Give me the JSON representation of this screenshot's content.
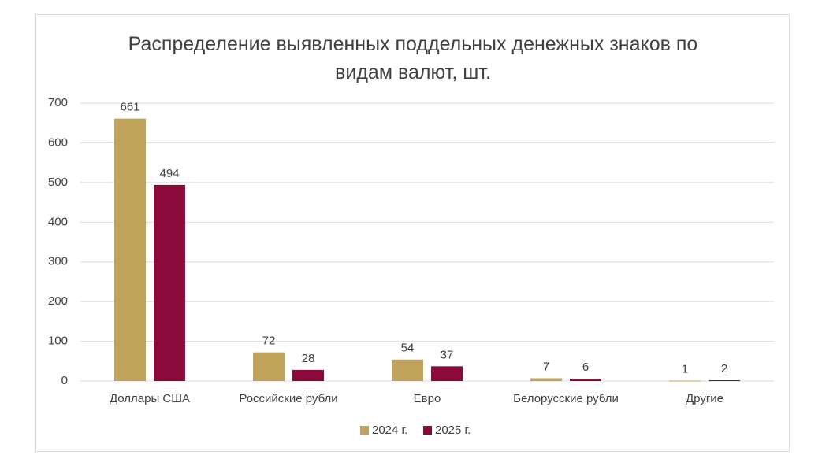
{
  "chart_data": {
    "type": "bar",
    "title": "Распределение выявленных поддельных денежных знаков по видам валют, шт.",
    "categories": [
      "Доллары США",
      "Российские рубли",
      "Евро",
      "Белорусские рубли",
      "Другие"
    ],
    "series": [
      {
        "name": "2024 г.",
        "color": "#c0a35a",
        "values": [
          661,
          72,
          54,
          7,
          1
        ]
      },
      {
        "name": "2025 г.",
        "color": "#8b0a3c",
        "values": [
          494,
          28,
          37,
          6,
          2
        ]
      }
    ],
    "ylim": [
      0,
      700
    ],
    "yticks": [
      0,
      100,
      200,
      300,
      400,
      500,
      600,
      700
    ],
    "grid": true,
    "legend": "bottom"
  }
}
